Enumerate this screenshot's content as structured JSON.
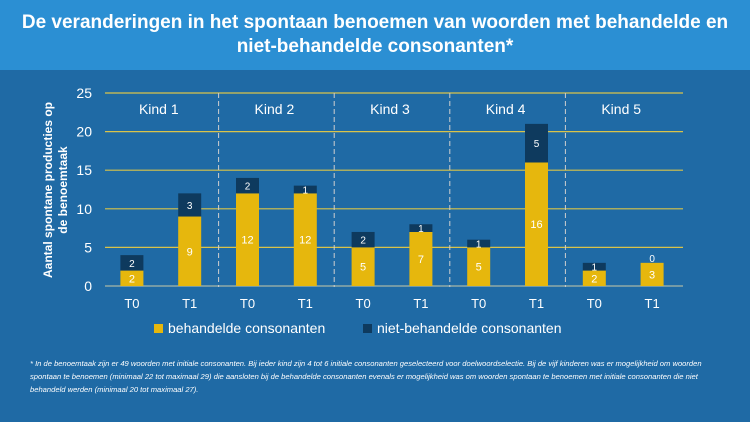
{
  "title": "De veranderingen in het spontaan benoemen van woorden met behandelde en\nniet-behandelde consonanten*",
  "footnote": "* In de benoemtaak zijn er 49 woorden met initiale consonanten. Bij ieder kind zijn 4 tot 6 initiale consonanten geselecteerd voor doelwoordselectie. Bij de vijf kinderen was er mogelijkheid om woorden spontaan te benoemen (minimaal 22 tot maximaal 29) die aansloten bij de behandelde consonanten evenals er mogelijkheid was om woorden spontaan te benoemen met initiale consonanten die niet behandeld werden (minimaal 20 tot maximaal 27).",
  "colors": {
    "treated": "#e6b70d",
    "untreated": "#0e3a5e",
    "grid": "#d9c34a",
    "text": "#ffffff",
    "title_bg": "#2b8fd3",
    "bg": "#1f6aa5"
  },
  "chart_data": {
    "type": "bar",
    "stacked": true,
    "ylabel": "Aantal spontane producties op de benoemtaak",
    "ylim": [
      0,
      25
    ],
    "yticks": [
      0,
      5,
      10,
      15,
      20,
      25
    ],
    "groups": [
      {
        "label": "Kind 1",
        "categories": [
          "T0",
          "T1"
        ]
      },
      {
        "label": "Kind 2",
        "categories": [
          "T0",
          "T1"
        ]
      },
      {
        "label": "Kind 3",
        "categories": [
          "T0",
          "T1"
        ]
      },
      {
        "label": "Kind 4",
        "categories": [
          "T0",
          "T1"
        ]
      },
      {
        "label": "Kind 5",
        "categories": [
          "T0",
          "T1"
        ]
      }
    ],
    "series": [
      {
        "name": "behandelde consonanten",
        "values": [
          [
            2,
            9
          ],
          [
            12,
            12
          ],
          [
            5,
            7
          ],
          [
            5,
            16
          ],
          [
            2,
            3
          ]
        ]
      },
      {
        "name": "niet-behandelde consonanten",
        "values": [
          [
            2,
            3
          ],
          [
            2,
            1
          ],
          [
            2,
            1
          ],
          [
            1,
            5
          ],
          [
            1,
            0
          ]
        ]
      }
    ],
    "legend": [
      "behandelde consonanten",
      "niet-behandelde consonanten"
    ]
  }
}
